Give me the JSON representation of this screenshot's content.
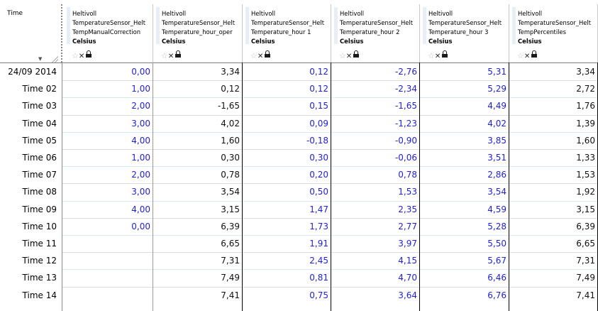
{
  "time_header": "Time",
  "columns": [
    {
      "line1": "Heltivoll",
      "line2": "TemperatureSensor_Helt",
      "line3": "TempManualCorrection",
      "unit": "Celsius"
    },
    {
      "line1": "Heltivoll",
      "line2": "TemperatureSensor_Helt",
      "line3": "Temperature_hour_oper",
      "unit": "Celsius"
    },
    {
      "line1": "Heltivoll",
      "line2": "TemperatureSensor_Helt",
      "line3": "Temperature_hour 1",
      "unit": "Celsius"
    },
    {
      "line1": "Heltivoll",
      "line2": "TemperatureSensor_Helt",
      "line3": "Temperature_hour 2",
      "unit": "Celsius"
    },
    {
      "line1": "Heltivoll",
      "line2": "TemperatureSensor_Helt",
      "line3": "Temperature_hour 3",
      "unit": "Celsius"
    },
    {
      "line1": "Heltivoll",
      "line2": "TemperatureSensor_Helt",
      "line3": "TempPercentiles",
      "unit": "Celsius"
    }
  ],
  "rows": [
    {
      "time": "24/09 2014",
      "values": [
        "0,00",
        "3,34",
        "0,12",
        "-2,76",
        "5,31",
        "3,34"
      ]
    },
    {
      "time": "Time 02",
      "values": [
        "1,00",
        "0,12",
        "0,12",
        "-2,34",
        "5,29",
        "2,72"
      ]
    },
    {
      "time": "Time 03",
      "values": [
        "2,00",
        "-1,65",
        "0,15",
        "-1,65",
        "4,49",
        "1,76"
      ]
    },
    {
      "time": "Time 04",
      "values": [
        "3,00",
        "4,02",
        "0,09",
        "-1,23",
        "4,02",
        "1,39"
      ]
    },
    {
      "time": "Time 05",
      "values": [
        "4,00",
        "1,60",
        "-0,18",
        "-0,90",
        "3,85",
        "1,60"
      ]
    },
    {
      "time": "Time 06",
      "values": [
        "1,00",
        "0,30",
        "0,30",
        "-0,06",
        "3,51",
        "1,33"
      ]
    },
    {
      "time": "Time 07",
      "values": [
        "2,00",
        "0,78",
        "0,20",
        "0,78",
        "2,86",
        "1,53"
      ]
    },
    {
      "time": "Time 08",
      "values": [
        "3,00",
        "3,54",
        "0,50",
        "1,53",
        "3,54",
        "1,92"
      ]
    },
    {
      "time": "Time 09",
      "values": [
        "4,00",
        "3,15",
        "1,47",
        "2,35",
        "4,59",
        "3,15"
      ]
    },
    {
      "time": "Time 10",
      "values": [
        "0,00",
        "6,39",
        "1,73",
        "2,77",
        "5,28",
        "6,39"
      ]
    },
    {
      "time": "Time 11",
      "values": [
        "",
        "6,65",
        "1,91",
        "3,97",
        "5,50",
        "6,65"
      ]
    },
    {
      "time": "Time 12",
      "values": [
        "",
        "7,31",
        "2,45",
        "4,15",
        "5,67",
        "7,31"
      ]
    },
    {
      "time": "Time 13",
      "values": [
        "",
        "7,49",
        "0,81",
        "4,70",
        "6,46",
        "7,49"
      ]
    },
    {
      "time": "Time 14",
      "values": [
        "",
        "7,41",
        "0,75",
        "3,64",
        "6,76",
        "7,41"
      ]
    }
  ],
  "colors": {
    "editable_value": "#1f1fd6",
    "computed_value": "#111111"
  }
}
